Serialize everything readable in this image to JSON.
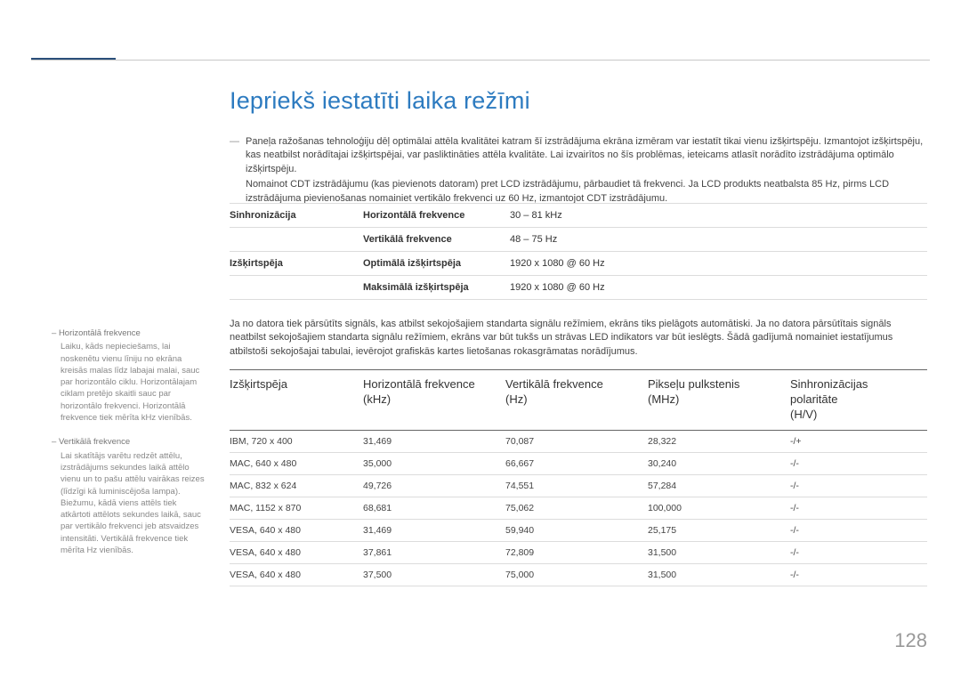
{
  "title": "Iepriekš iestatīti laika režīmi",
  "intro": {
    "p1": "Paneļa ražošanas tehnoloģiju dēļ optimālai attēla kvalitātei katram šī izstrādājuma ekrāna izmēram var iestatīt tikai vienu izšķirtspēju. Izmantojot izšķirtspēju, kas neatbilst norādītajai izšķirtspējai, var pasliktināties attēla kvalitāte. Lai izvairītos no šīs problēmas, ieteicams atlasīt norādīto izstrādājuma optimālo izšķirtspēju.",
    "p2": "Nomainot CDT izstrādājumu (kas pievienots datoram) pret LCD izstrādājumu, pārbaudiet tā frekvenci. Ja LCD produkts neatbalsta 85 Hz, pirms LCD izstrādājuma pievienošanas nomainiet vertikālo frekvenci uz 60 Hz, izmantojot CDT izstrādājumu."
  },
  "specs": {
    "rows": [
      {
        "c1": "Sinhronizācija",
        "c2": "Horizontālā frekvence",
        "c3": "30 – 81 kHz"
      },
      {
        "c1": "",
        "c2": "Vertikālā frekvence",
        "c3": "48 – 75 Hz"
      },
      {
        "c1": "Izšķirtspēja",
        "c2": "Optimālā izšķirtspēja",
        "c3": "1920 x 1080 @ 60 Hz"
      },
      {
        "c1": "",
        "c2": "Maksimālā izšķirtspēja",
        "c3": "1920 x 1080 @ 60 Hz"
      }
    ]
  },
  "mid_text": "Ja no datora tiek pārsūtīts signāls, kas atbilst sekojošajiem standarta signālu režīmiem, ekrāns tiks pielāgots automātiski. Ja no datora pārsūtītais signāls neatbilst sekojošajiem standarta signālu režīmiem, ekrāns var būt tukšs un strāvas LED indikators var būt ieslēgts. Šādā gadījumā nomainiet iestatījumus atbilstoši sekojošajai tabulai, ievērojot grafiskās kartes lietošanas rokasgrāmatas norādījumus.",
  "sidebar": {
    "items": [
      {
        "lbl": "Horizontālā frekvence",
        "desc": "Laiku, kāds nepieciešams, lai noskenētu vienu līniju no ekrāna kreisās malas līdz labajai malai, sauc par horizontālo ciklu. Horizontālajam ciklam pretējo skaitli sauc par horizontālo frekvenci. Horizontālā frekvence tiek mērīta kHz vienībās."
      },
      {
        "lbl": "Vertikālā frekvence",
        "desc": "Lai skatītājs varētu redzēt attēlu, izstrādājums sekundes laikā attēlo vienu un to pašu attēlu vairākas reizes (līdzīgi kā luminiscējoša lampa). Biežumu, kādā viens attēls tiek atkārtoti attēlots sekundes laikā, sauc par vertikālo frekvenci jeb atsvaidzes intensitāti. Vertikālā frekvence tiek mērīta Hz vienībās."
      }
    ]
  },
  "table": {
    "headers": {
      "h1": "Izšķirtspēja",
      "h2a": "Horizontālā frekvence",
      "h2b": "(kHz)",
      "h3a": "Vertikālā frekvence",
      "h3b": "(Hz)",
      "h4a": "Pikseļu pulkstenis",
      "h4b": "(MHz)",
      "h5a": "Sinhronizācijas",
      "h5b": "polaritāte",
      "h5c": "(H/V)"
    },
    "rows": [
      {
        "c1": "IBM, 720 x 400",
        "c2": "31,469",
        "c3": "70,087",
        "c4": "28,322",
        "c5": "-/+"
      },
      {
        "c1": "MAC, 640 x 480",
        "c2": "35,000",
        "c3": "66,667",
        "c4": "30,240",
        "c5": "-/-"
      },
      {
        "c1": "MAC, 832 x 624",
        "c2": "49,726",
        "c3": "74,551",
        "c4": "57,284",
        "c5": "-/-"
      },
      {
        "c1": "MAC, 1152 x 870",
        "c2": "68,681",
        "c3": "75,062",
        "c4": "100,000",
        "c5": "-/-"
      },
      {
        "c1": "VESA, 640 x 480",
        "c2": "31,469",
        "c3": "59,940",
        "c4": "25,175",
        "c5": "-/-"
      },
      {
        "c1": "VESA, 640 x 480",
        "c2": "37,861",
        "c3": "72,809",
        "c4": "31,500",
        "c5": "-/-"
      },
      {
        "c1": "VESA, 640 x 480",
        "c2": "37,500",
        "c3": "75,000",
        "c4": "31,500",
        "c5": "-/-"
      }
    ]
  },
  "page_num": "128",
  "colors": {
    "accent": "#2b4f7a",
    "title": "#2d7bc0",
    "rule": "#c8c8c8",
    "text": "#444444",
    "muted": "#888888",
    "bg": "#ffffff"
  }
}
